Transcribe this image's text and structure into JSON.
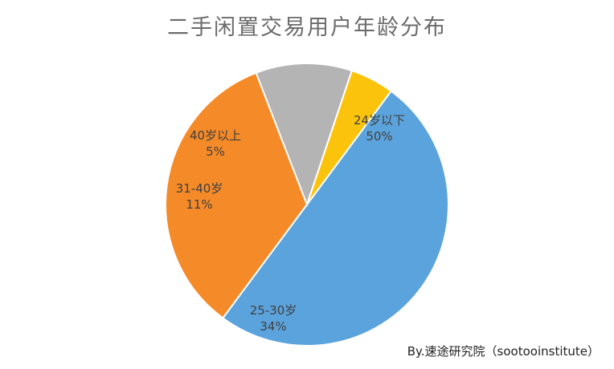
{
  "chart_data": {
    "type": "pie",
    "title": "二手闲置交易用户年龄分布",
    "slices": [
      {
        "label": "24岁以下",
        "value": 50,
        "percent_label": "50%",
        "color": "#5ba3dc"
      },
      {
        "label": "25-30岁",
        "value": 34,
        "percent_label": "34%",
        "color": "#f58a28"
      },
      {
        "label": "31-40岁",
        "value": 11,
        "percent_label": "11%",
        "color": "#b4b4b4"
      },
      {
        "label": "40岁以上",
        "value": 5,
        "percent_label": "5%",
        "color": "#fbc30c"
      }
    ],
    "legend": "none"
  },
  "credit": "By.速途研究院（sootooinstitute）"
}
